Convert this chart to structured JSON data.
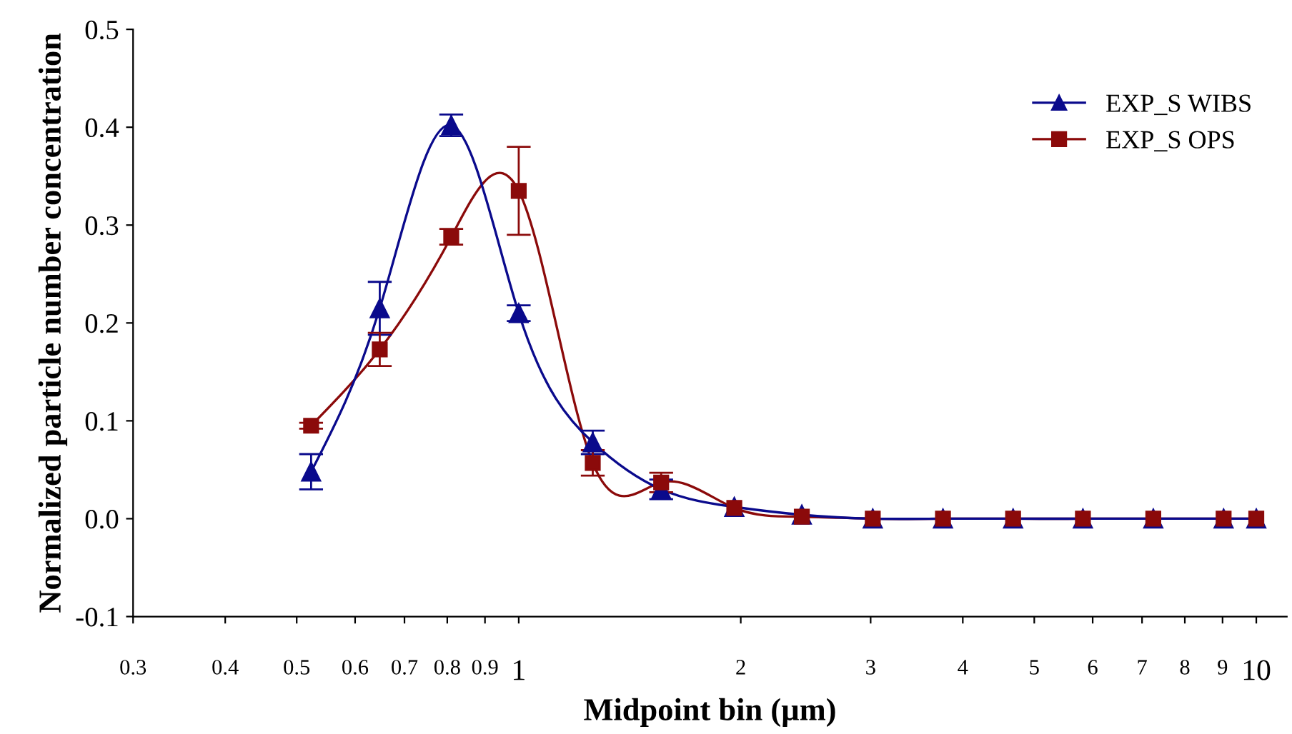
{
  "chart_data": {
    "type": "line",
    "xlabel": "Midpoint bin (µm)",
    "ylabel": "Normalized particle number concentration",
    "log": "x",
    "xlim": [
      0.3,
      11
    ],
    "ylim": [
      -0.1,
      0.5
    ],
    "xticks": [
      0.3,
      0.4,
      0.5,
      0.6,
      0.7,
      0.8,
      0.9,
      1,
      2,
      3,
      4,
      5,
      6,
      7,
      8,
      9,
      10
    ],
    "yticks": [
      {
        "value": -0.1,
        "label": "-0.1"
      },
      {
        "value": 0,
        "label": "0.0"
      },
      0.1,
      0.2,
      0.3,
      0.4,
      0.5
    ],
    "grid": false,
    "legend": "top right",
    "x": [
      0.523,
      0.648,
      0.81,
      1.0,
      1.26,
      1.56,
      1.96,
      2.42,
      3.02,
      3.76,
      4.68,
      5.82,
      7.25,
      9.03,
      10.0
    ],
    "series": [
      {
        "name": "EXP_S WIBS",
        "color": "#0a0a8c",
        "marker": "triangle",
        "values": [
          0.048,
          0.215,
          0.402,
          0.21,
          0.078,
          0.03,
          0.012,
          0.004,
          0,
          0,
          0,
          0,
          0,
          0,
          0
        ],
        "errors": [
          0.018,
          0.027,
          0.011,
          0.008,
          0.012,
          0.01,
          null,
          null,
          null,
          null,
          null,
          null,
          null,
          null,
          null
        ]
      },
      {
        "name": "EXP_S OPS",
        "color": "#8b0a0a",
        "marker": "square",
        "values": [
          0.095,
          0.173,
          0.288,
          0.335,
          0.057,
          0.037,
          0.011,
          0.002,
          0,
          0,
          0,
          0,
          0,
          0,
          0
        ],
        "errors": [
          0.003,
          0.017,
          0.008,
          0.045,
          0.013,
          0.01,
          null,
          null,
          null,
          null,
          null,
          null,
          null,
          null,
          null
        ]
      }
    ]
  }
}
